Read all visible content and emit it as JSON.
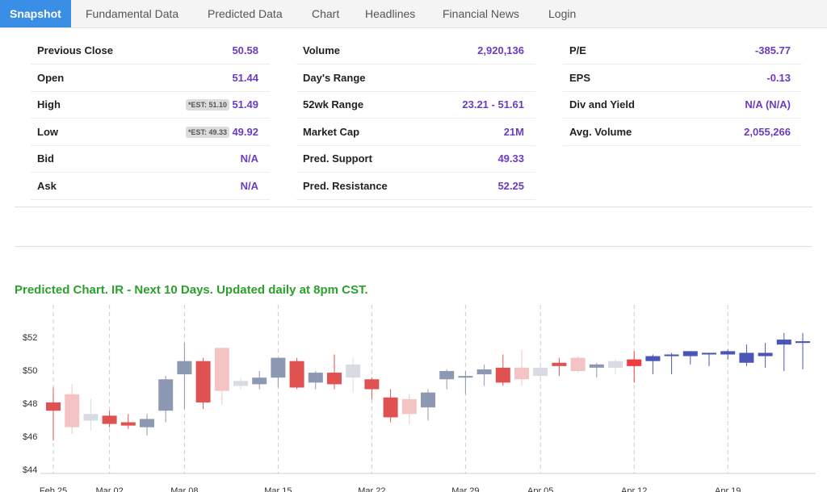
{
  "nav": [
    "Snapshot",
    "Fundamental Data",
    "Predicted Data",
    "Chart",
    "Headlines",
    "Financial News",
    "Login"
  ],
  "stats": [
    [
      {
        "label": "Previous Close",
        "value": "50.58"
      },
      {
        "label": "Open",
        "value": "51.44"
      },
      {
        "label": "High",
        "value": "51.49",
        "est": "*EST: 51.10"
      },
      {
        "label": "Low",
        "value": "49.92",
        "est": "*EST: 49.33"
      },
      {
        "label": "Bid",
        "value": "N/A"
      },
      {
        "label": "Ask",
        "value": "N/A"
      }
    ],
    [
      {
        "label": "Volume",
        "value": "2,920,136"
      },
      {
        "label": "Day's Range",
        "value": ""
      },
      {
        "label": "52wk Range",
        "value": "23.21 - 51.61"
      },
      {
        "label": "Market Cap",
        "value": "21M"
      },
      {
        "label": "Pred. Support",
        "value": "49.33"
      },
      {
        "label": "Pred. Resistance",
        "value": "52.25"
      }
    ],
    [
      {
        "label": "P/E",
        "value": "-385.77"
      },
      {
        "label": "EPS",
        "value": "-0.13"
      },
      {
        "label": "Div and Yield",
        "value": "N/A (N/A)"
      },
      {
        "label": "Avg. Volume",
        "value": "2,055,266"
      }
    ]
  ],
  "chart_data": {
    "type": "candlestick",
    "title": "Predicted Chart. IR - Next 10 Days. Updated daily at 8pm CST.",
    "categories": [
      "Feb 25",
      null,
      null,
      "Mar 02",
      null,
      null,
      null,
      "Mar 08",
      null,
      null,
      null,
      null,
      "Mar 15",
      null,
      null,
      null,
      null,
      "Mar 22",
      null,
      null,
      null,
      null,
      "Mar 29",
      null,
      null,
      null,
      "Apr 05",
      null,
      null,
      null,
      null,
      "Apr 12",
      null,
      null,
      null,
      null,
      "Apr 19",
      null,
      null,
      null,
      null
    ],
    "open": [
      48.1,
      48.6,
      47.0,
      47.3,
      46.9,
      46.6,
      47.6,
      49.8,
      50.6,
      51.4,
      49.1,
      49.2,
      49.6,
      50.6,
      49.3,
      49.9,
      49.6,
      49.5,
      48.4,
      48.3,
      47.8,
      49.5,
      49.6,
      49.8,
      50.2,
      50.2,
      49.7,
      50.5,
      50.8,
      50.2,
      50.2,
      50.7,
      50.6,
      50.9,
      50.9,
      51.0,
      51.0,
      50.5,
      50.9,
      51.6,
      51.7
    ],
    "high": [
      49.0,
      49.2,
      48.3,
      47.6,
      47.4,
      47.4,
      49.7,
      51.7,
      50.8,
      51.4,
      49.6,
      50.0,
      50.8,
      50.8,
      50.0,
      51.0,
      50.8,
      49.6,
      48.9,
      48.6,
      48.9,
      50.1,
      50.0,
      50.4,
      51.0,
      51.3,
      50.3,
      50.8,
      50.9,
      50.5,
      50.7,
      51.2,
      51.0,
      51.1,
      51.2,
      51.1,
      51.3,
      51.6,
      51.7,
      52.3,
      52.3
    ],
    "low": [
      45.8,
      46.2,
      46.4,
      46.6,
      46.5,
      46.1,
      46.9,
      47.7,
      47.7,
      48.0,
      48.9,
      48.9,
      49.0,
      48.9,
      48.9,
      48.9,
      48.7,
      48.3,
      46.9,
      46.8,
      47.0,
      48.9,
      48.6,
      49.1,
      49.1,
      49.1,
      49.6,
      49.7,
      49.9,
      49.6,
      49.8,
      49.3,
      49.8,
      49.8,
      50.4,
      50.3,
      50.7,
      50.3,
      50.2,
      50.0,
      50.1
    ],
    "close": [
      47.6,
      46.6,
      47.4,
      46.8,
      46.7,
      47.1,
      49.5,
      50.6,
      48.1,
      48.8,
      49.4,
      49.6,
      50.8,
      49.0,
      49.9,
      49.2,
      50.4,
      48.9,
      47.2,
      47.4,
      48.7,
      50.0,
      49.7,
      50.1,
      49.3,
      49.5,
      50.2,
      50.3,
      50.0,
      50.4,
      50.6,
      50.3,
      50.9,
      51.0,
      51.2,
      51.1,
      51.2,
      51.1,
      51.1,
      51.9,
      51.8
    ],
    "colors": [
      "#e05252",
      "#f4c4c4",
      "#d8dbe3",
      "#e05252",
      "#e05252",
      "#8d98b2",
      "#8d98b2",
      "#8d98b2",
      "#e05252",
      "#f4c4c4",
      "#d8dbe3",
      "#8d98b2",
      "#8d98b2",
      "#e05252",
      "#8d98b2",
      "#e05252",
      "#d8dbe3",
      "#e05252",
      "#e05252",
      "#f4c4c4",
      "#8d98b2",
      "#8d98b2",
      "#8d98b2",
      "#8d98b2",
      "#e05252",
      "#f4c4c4",
      "#d8dbe3",
      "#e05252",
      "#f4c4c4",
      "#8d98b2",
      "#d8dbe3",
      "#ef3b3b",
      "#4a55b8",
      "#4a55b8",
      "#4a55b8",
      "#4a55b8",
      "#4a55b8",
      "#4a55b8",
      "#4a55b8",
      "#4a55b8",
      "#4a55b8"
    ],
    "ylim": [
      44,
      54
    ],
    "yticks": [
      {
        "value": 44,
        "label": "$44"
      },
      {
        "value": 46,
        "label": "$46"
      },
      {
        "value": 48,
        "label": "$48"
      },
      {
        "value": 50,
        "label": "$50"
      },
      {
        "value": 52,
        "label": "$52"
      }
    ],
    "grid": true
  }
}
